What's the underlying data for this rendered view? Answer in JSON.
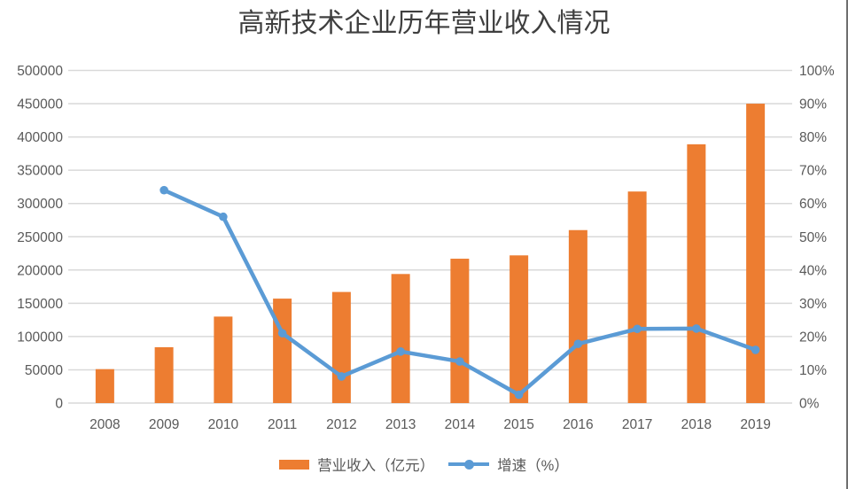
{
  "chart_data": {
    "type": "combo",
    "title": "高新技术企业历年营业收入情况",
    "categories": [
      "2008",
      "2009",
      "2010",
      "2011",
      "2012",
      "2013",
      "2014",
      "2015",
      "2016",
      "2017",
      "2018",
      "2019"
    ],
    "series": [
      {
        "name": "营业收入（亿元）",
        "type": "bar",
        "axis": "left",
        "color": "#ED7D31",
        "values": [
          51000,
          84000,
          130000,
          157000,
          167000,
          194000,
          217000,
          222000,
          260000,
          318000,
          389000,
          450000
        ]
      },
      {
        "name": "增速（%）",
        "type": "line",
        "axis": "right",
        "color": "#5B9BD5",
        "values": [
          null,
          64,
          56,
          21,
          8,
          15.5,
          12.5,
          2.5,
          17.8,
          22.3,
          22.4,
          16
        ]
      }
    ],
    "left_axis": {
      "min": 0,
      "max": 500000,
      "step": 50000,
      "tick_labels": [
        "0",
        "50000",
        "100000",
        "150000",
        "200000",
        "250000",
        "300000",
        "350000",
        "400000",
        "450000",
        "500000"
      ]
    },
    "right_axis": {
      "min": 0,
      "max": 100,
      "step": 10,
      "tick_labels": [
        "0%",
        "10%",
        "20%",
        "30%",
        "40%",
        "50%",
        "60%",
        "70%",
        "80%",
        "90%",
        "100%"
      ]
    },
    "grid": true,
    "legend_position": "bottom",
    "colors": {
      "gridline": "#D9D9D9",
      "axis_text": "#595959",
      "title_text": "#3f3f3f"
    }
  }
}
